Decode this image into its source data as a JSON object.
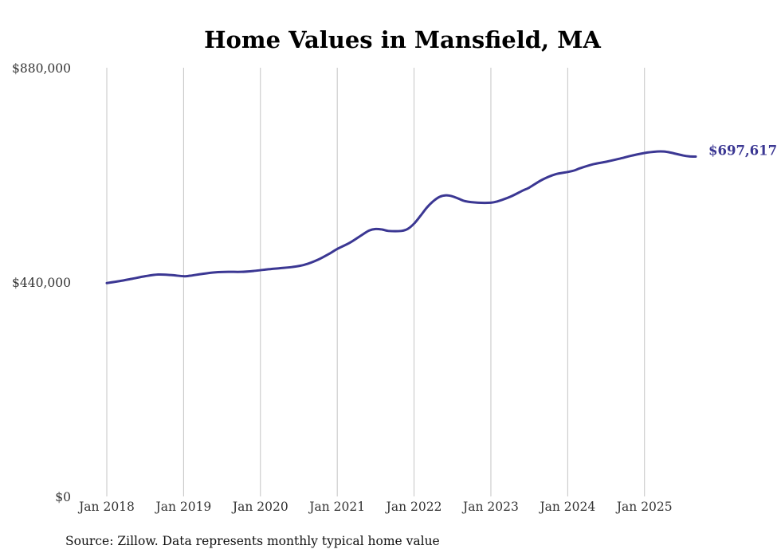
{
  "chart_data": {
    "type": "line",
    "title": "Home Values in Mansfield, MA",
    "xlabel": "",
    "ylabel": "",
    "ylim": [
      0,
      880000
    ],
    "yticks": [
      {
        "value": 0,
        "label": "$0"
      },
      {
        "value": 440000,
        "label": "$440,000"
      },
      {
        "value": 880000,
        "label": "$880,000"
      }
    ],
    "xlim": [
      0,
      92
    ],
    "xticks": [
      {
        "value": 0,
        "label": "Jan 2018"
      },
      {
        "value": 12,
        "label": "Jan 2019"
      },
      {
        "value": 24,
        "label": "Jan 2020"
      },
      {
        "value": 36,
        "label": "Jan 2021"
      },
      {
        "value": 48,
        "label": "Jan 2022"
      },
      {
        "value": 60,
        "label": "Jan 2023"
      },
      {
        "value": 72,
        "label": "Jan 2024"
      },
      {
        "value": 84,
        "label": "Jan 2025"
      }
    ],
    "grid": "vertical",
    "series": [
      {
        "name": "Typical home value",
        "color": "#3b3793",
        "end_label": "$697,617",
        "points": [
          [
            0,
            438000
          ],
          [
            2,
            442000
          ],
          [
            4,
            447000
          ],
          [
            6,
            452000
          ],
          [
            8,
            455500
          ],
          [
            10,
            454500
          ],
          [
            12,
            452000
          ],
          [
            13,
            453000
          ],
          [
            15,
            457000
          ],
          [
            17,
            460000
          ],
          [
            19,
            461000
          ],
          [
            21,
            461000
          ],
          [
            23,
            463000
          ],
          [
            25,
            466000
          ],
          [
            27,
            468500
          ],
          [
            29,
            471000
          ],
          [
            31,
            476000
          ],
          [
            33,
            486000
          ],
          [
            35,
            500000
          ],
          [
            36,
            508000
          ],
          [
            38,
            521000
          ],
          [
            40,
            538000
          ],
          [
            41,
            546000
          ],
          [
            42,
            549000
          ],
          [
            43,
            548000
          ],
          [
            44,
            545000
          ],
          [
            46,
            545000
          ],
          [
            47,
            549000
          ],
          [
            48,
            560000
          ],
          [
            49,
            576000
          ],
          [
            50,
            593000
          ],
          [
            51,
            606000
          ],
          [
            52,
            615000
          ],
          [
            53,
            618000
          ],
          [
            54,
            616000
          ],
          [
            55,
            611000
          ],
          [
            56,
            606000
          ],
          [
            58,
            603000
          ],
          [
            60,
            603000
          ],
          [
            61,
            605500
          ],
          [
            63,
            615000
          ],
          [
            65,
            628000
          ],
          [
            66,
            634000
          ],
          [
            68,
            650000
          ],
          [
            70,
            661000
          ],
          [
            72,
            666000
          ],
          [
            73,
            669000
          ],
          [
            74,
            674000
          ],
          [
            76,
            682000
          ],
          [
            78,
            687000
          ],
          [
            80,
            693000
          ],
          [
            82,
            699500
          ],
          [
            84,
            705000
          ],
          [
            86,
            708000
          ],
          [
            87,
            708000
          ],
          [
            88,
            706000
          ],
          [
            90,
            700000
          ],
          [
            91,
            698000
          ],
          [
            92,
            697617
          ]
        ]
      }
    ]
  },
  "source_note": "Source: Zillow. Data represents monthly typical home value"
}
